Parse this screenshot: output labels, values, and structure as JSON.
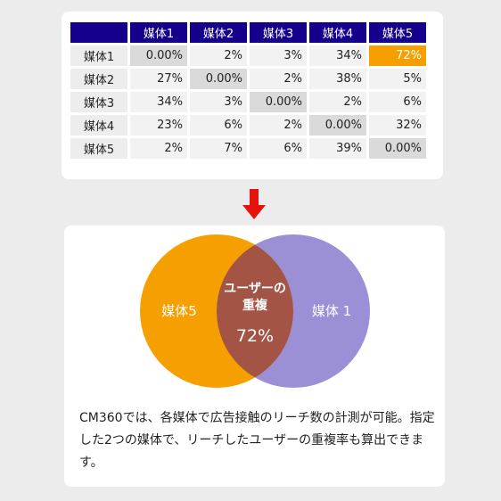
{
  "table": {
    "col_headers": [
      "媒体1",
      "媒体2",
      "媒体3",
      "媒体4",
      "媒体5"
    ],
    "rows": [
      {
        "label": "媒体1",
        "cells": [
          "0.00%",
          "2%",
          "3%",
          "34%",
          "72%"
        ]
      },
      {
        "label": "媒体2",
        "cells": [
          "27%",
          "0.00%",
          "2%",
          "38%",
          "5%"
        ]
      },
      {
        "label": "媒体3",
        "cells": [
          "34%",
          "3%",
          "0.00%",
          "2%",
          "6%"
        ]
      },
      {
        "label": "媒体4",
        "cells": [
          "23%",
          "6%",
          "2%",
          "0.00%",
          "32%"
        ]
      },
      {
        "label": "媒体5",
        "cells": [
          "2%",
          "7%",
          "6%",
          "39%",
          "0.00%"
        ]
      }
    ],
    "highlighted_cell": "媒体1 × 媒体5"
  },
  "arrow": {
    "icon": "down-arrow-icon",
    "color": "#e8120c"
  },
  "venn": {
    "left_label": "媒体5",
    "right_label": "媒体 1",
    "overlap_title_line1": "ユーザーの",
    "overlap_title_line2": "重複",
    "overlap_value": "72%",
    "colors": {
      "left": "#f5a000",
      "right": "#9b8fd6",
      "overlap": "#a35445"
    }
  },
  "caption": "CM360では、各媒体で広告接触のリーチ数の計測が可能。指定した2つの媒体で、リーチしたユーザーの重複率も算出できます。",
  "colors": {
    "header_bg": "#14008c",
    "highlight": "#f5a000"
  }
}
